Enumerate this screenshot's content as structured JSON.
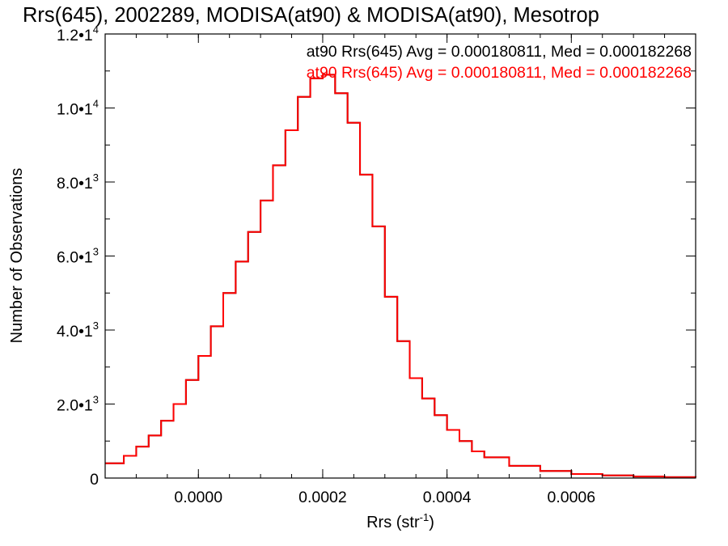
{
  "chart_data": {
    "type": "line",
    "title": "Rrs(645), 2002289, MODISA(at90) & MODISA(at90), Mesotrop",
    "xlabel": "Rrs (str",
    "xlabel_sup": "-1",
    "xlabel_tail": ")",
    "ylabel": "Number of Observations",
    "xlim": [
      -0.00015,
      0.0008
    ],
    "ylim": [
      0,
      12000
    ],
    "x_ticks": [
      0.0,
      0.0002,
      0.0004,
      0.0006
    ],
    "x_tick_labels": [
      "0.0000",
      "0.0002",
      "0.0004",
      "0.0006"
    ],
    "y_ticks": [
      0,
      2000,
      4000,
      6000,
      8000,
      10000,
      12000
    ],
    "y_tick_labels": [
      {
        "mant": "0",
        "exp": ""
      },
      {
        "mant": "2.0•1",
        "exp": "3"
      },
      {
        "mant": "4.0•1",
        "exp": "3"
      },
      {
        "mant": "6.0•1",
        "exp": "3"
      },
      {
        "mant": "8.0•1",
        "exp": "3"
      },
      {
        "mant": "1.0•1",
        "exp": "4"
      },
      {
        "mant": "1.2•1",
        "exp": "4"
      }
    ],
    "annotations": [
      "at90 Rrs(645) Avg = 0.000180811, Med = 0.000182268",
      "at90 Rrs(645) Avg = 0.000180811, Med = 0.000182268"
    ],
    "series": [
      {
        "color": "#000000",
        "x": [
          -0.00015,
          -0.00012,
          -0.0001,
          -8e-05,
          -6e-05,
          -4e-05,
          -2e-05,
          0.0,
          2e-05,
          4e-05,
          6e-05,
          8e-05,
          0.0001,
          0.00012,
          0.00014,
          0.00016,
          0.00018,
          0.0002,
          0.00022,
          0.00024,
          0.00026,
          0.00028,
          0.0003,
          0.00032,
          0.00034,
          0.00036,
          0.00038,
          0.0004,
          0.00042,
          0.00044,
          0.00046,
          0.0005,
          0.00055,
          0.0006,
          0.00065,
          0.0007,
          0.00075,
          0.0008
        ],
        "y": [
          400,
          600,
          850,
          1150,
          1550,
          2000,
          2650,
          3300,
          4100,
          5000,
          5850,
          6650,
          7500,
          8450,
          9400,
          10300,
          10800,
          10900,
          10400,
          9600,
          8200,
          6800,
          4900,
          3700,
          2700,
          2150,
          1700,
          1300,
          1000,
          720,
          560,
          330,
          190,
          110,
          70,
          40,
          25,
          20
        ]
      },
      {
        "color": "#ff0000",
        "x": [
          -0.00015,
          -0.00012,
          -0.0001,
          -8e-05,
          -6e-05,
          -4e-05,
          -2e-05,
          0.0,
          2e-05,
          4e-05,
          6e-05,
          8e-05,
          0.0001,
          0.00012,
          0.00014,
          0.00016,
          0.00018,
          0.0002,
          0.00022,
          0.00024,
          0.00026,
          0.00028,
          0.0003,
          0.00032,
          0.00034,
          0.00036,
          0.00038,
          0.0004,
          0.00042,
          0.00044,
          0.00046,
          0.0005,
          0.00055,
          0.0006,
          0.00065,
          0.0007,
          0.00075,
          0.0008
        ],
        "y": [
          400,
          600,
          850,
          1150,
          1550,
          2000,
          2650,
          3300,
          4100,
          5000,
          5850,
          6650,
          7500,
          8450,
          9400,
          10300,
          10800,
          10900,
          10400,
          9600,
          8200,
          6800,
          4900,
          3700,
          2700,
          2150,
          1700,
          1300,
          1000,
          720,
          560,
          330,
          190,
          110,
          70,
          40,
          25,
          20
        ]
      }
    ]
  }
}
